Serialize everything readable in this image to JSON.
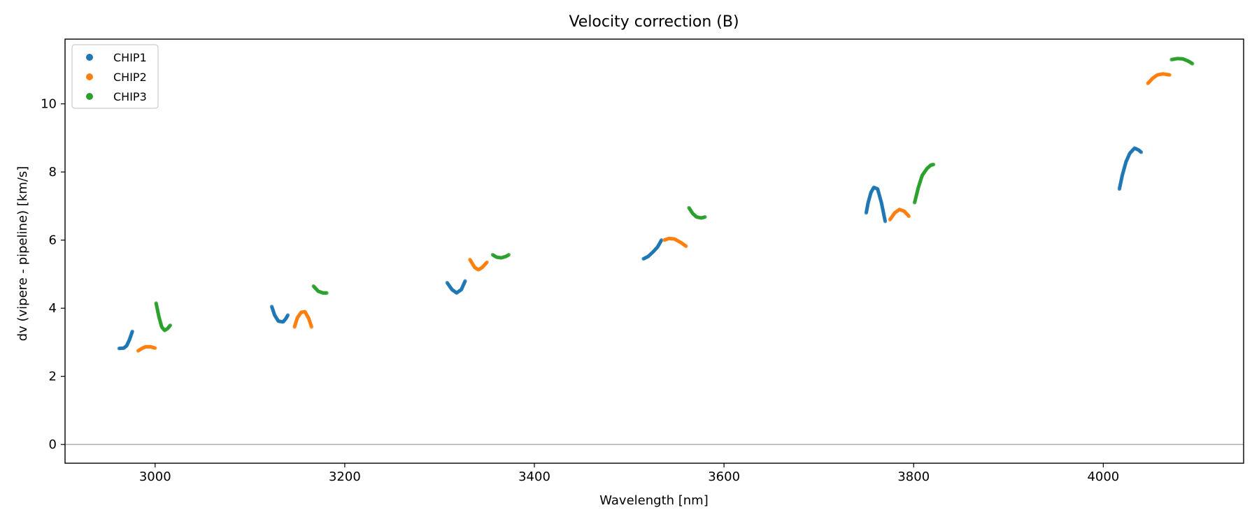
{
  "colors": {
    "CHIP1": "#1f77b4",
    "CHIP2": "#ff7f0e",
    "CHIP3": "#2ca02c",
    "zero_line": "#888888"
  },
  "chart_data": {
    "type": "scatter",
    "title": "Velocity correction (B)",
    "xlabel": "Wavelength [nm]",
    "ylabel": "dv (vipere - pipeline) [km/s]",
    "xlim": [
      2905,
      4148
    ],
    "ylim": [
      -0.55,
      11.9
    ],
    "xticks": [
      3000,
      3200,
      3400,
      3600,
      3800,
      4000
    ],
    "yticks": [
      0,
      2,
      4,
      6,
      8,
      10
    ],
    "grid": false,
    "hline": 0,
    "legend": {
      "placement": "top-left",
      "entries": [
        "CHIP1",
        "CHIP2",
        "CHIP3"
      ]
    },
    "series": [
      {
        "name": "CHIP1",
        "segments": [
          [
            [
              2962,
              2.82
            ],
            [
              2967,
              2.83
            ],
            [
              2970,
              2.9
            ],
            [
              2973,
              3.08
            ],
            [
              2976,
              3.32
            ]
          ],
          [
            [
              3123,
              4.05
            ],
            [
              3126,
              3.8
            ],
            [
              3130,
              3.62
            ],
            [
              3135,
              3.6
            ],
            [
              3138,
              3.7
            ],
            [
              3140,
              3.8
            ]
          ],
          [
            [
              3308,
              4.75
            ],
            [
              3313,
              4.55
            ],
            [
              3318,
              4.45
            ],
            [
              3323,
              4.55
            ],
            [
              3327,
              4.8
            ]
          ],
          [
            [
              3515,
              5.45
            ],
            [
              3520,
              5.52
            ],
            [
              3525,
              5.65
            ],
            [
              3530,
              5.8
            ],
            [
              3534,
              6.0
            ]
          ],
          [
            [
              3750,
              6.8
            ],
            [
              3752,
              7.1
            ],
            [
              3755,
              7.4
            ],
            [
              3758,
              7.55
            ],
            [
              3762,
              7.5
            ],
            [
              3766,
              7.1
            ],
            [
              3770,
              6.55
            ]
          ],
          [
            [
              4017,
              7.5
            ],
            [
              4020,
              7.9
            ],
            [
              4024,
              8.3
            ],
            [
              4028,
              8.55
            ],
            [
              4033,
              8.7
            ],
            [
              4037,
              8.65
            ],
            [
              4040,
              8.58
            ]
          ]
        ]
      },
      {
        "name": "CHIP2",
        "segments": [
          [
            [
              2982,
              2.75
            ],
            [
              2986,
              2.82
            ],
            [
              2990,
              2.87
            ],
            [
              2995,
              2.87
            ],
            [
              3000,
              2.83
            ]
          ],
          [
            [
              3147,
              3.45
            ],
            [
              3150,
              3.72
            ],
            [
              3154,
              3.88
            ],
            [
              3158,
              3.9
            ],
            [
              3162,
              3.7
            ],
            [
              3165,
              3.45
            ]
          ],
          [
            [
              3332,
              5.43
            ],
            [
              3337,
              5.2
            ],
            [
              3341,
              5.13
            ],
            [
              3345,
              5.2
            ],
            [
              3350,
              5.35
            ]
          ],
          [
            [
              3537,
              6.0
            ],
            [
              3542,
              6.05
            ],
            [
              3548,
              6.03
            ],
            [
              3555,
              5.92
            ],
            [
              3560,
              5.82
            ]
          ],
          [
            [
              3775,
              6.6
            ],
            [
              3780,
              6.8
            ],
            [
              3785,
              6.9
            ],
            [
              3790,
              6.85
            ],
            [
              3795,
              6.7
            ]
          ],
          [
            [
              4047,
              10.6
            ],
            [
              4052,
              10.75
            ],
            [
              4057,
              10.85
            ],
            [
              4063,
              10.88
            ],
            [
              4070,
              10.85
            ]
          ]
        ]
      },
      {
        "name": "CHIP3",
        "segments": [
          [
            [
              3001,
              4.15
            ],
            [
              3004,
              3.75
            ],
            [
              3007,
              3.45
            ],
            [
              3010,
              3.35
            ],
            [
              3013,
              3.4
            ],
            [
              3016,
              3.5
            ]
          ],
          [
            [
              3167,
              4.65
            ],
            [
              3172,
              4.5
            ],
            [
              3177,
              4.45
            ],
            [
              3181,
              4.45
            ]
          ],
          [
            [
              3356,
              5.57
            ],
            [
              3360,
              5.5
            ],
            [
              3365,
              5.48
            ],
            [
              3370,
              5.52
            ],
            [
              3373,
              5.57
            ]
          ],
          [
            [
              3563,
              6.95
            ],
            [
              3567,
              6.78
            ],
            [
              3571,
              6.68
            ],
            [
              3576,
              6.65
            ],
            [
              3580,
              6.68
            ]
          ],
          [
            [
              3801,
              7.1
            ],
            [
              3805,
              7.55
            ],
            [
              3809,
              7.9
            ],
            [
              3814,
              8.1
            ],
            [
              3818,
              8.2
            ],
            [
              3821,
              8.22
            ]
          ],
          [
            [
              4072,
              11.3
            ],
            [
              4078,
              11.33
            ],
            [
              4084,
              11.32
            ],
            [
              4090,
              11.25
            ],
            [
              4094,
              11.18
            ]
          ]
        ]
      }
    ]
  }
}
